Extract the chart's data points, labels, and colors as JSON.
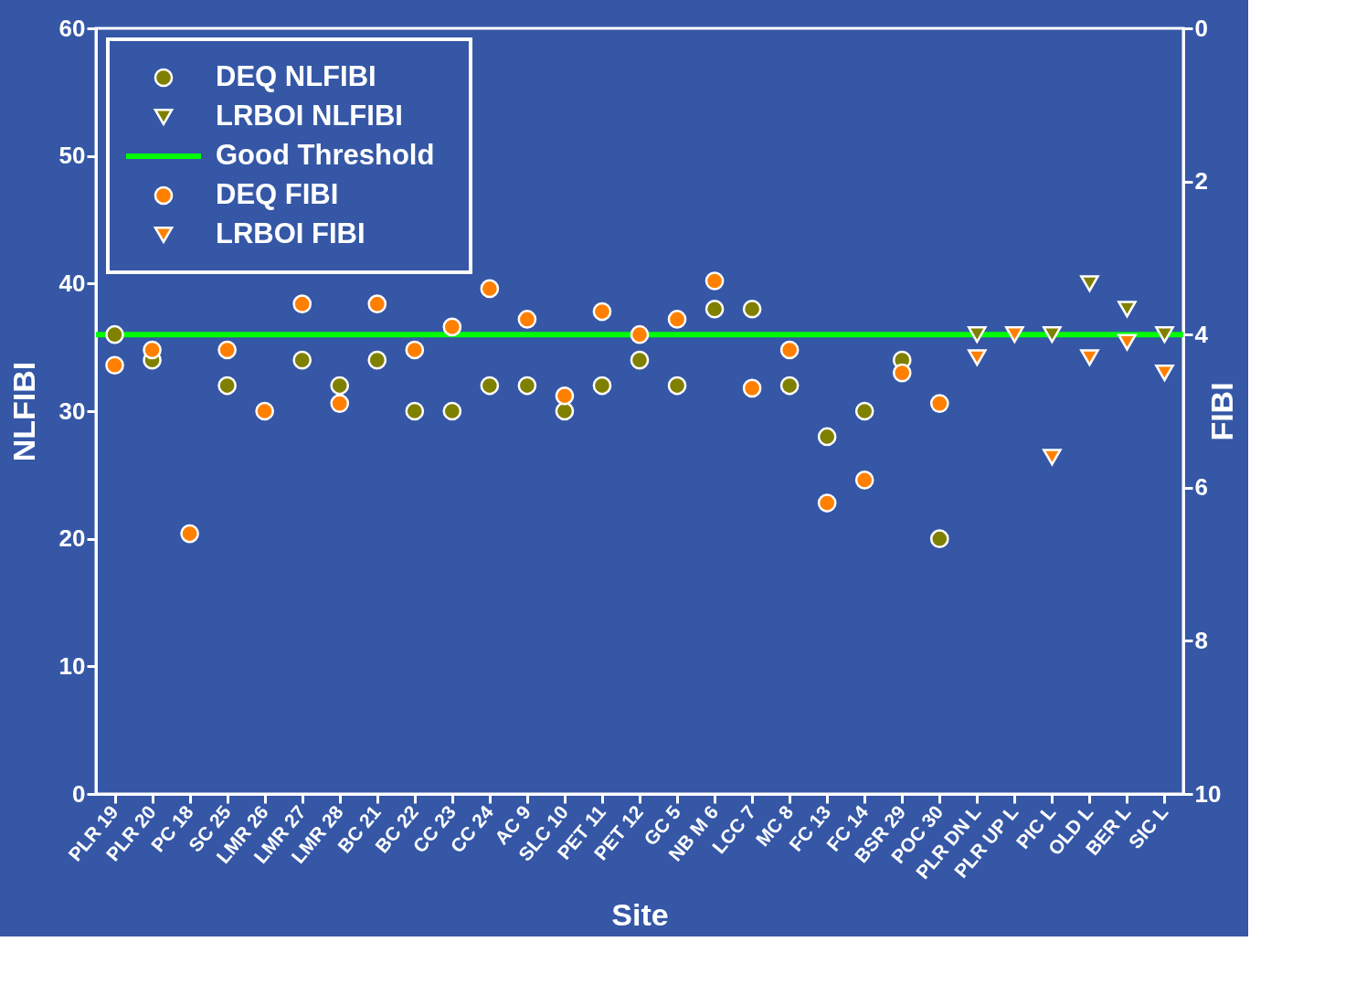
{
  "chart_data": {
    "type": "scatter",
    "xlabel": "Site",
    "ylabel": "NLFIBI",
    "y2label": "FIBI",
    "categories": [
      "PLR 19",
      "PLR 20",
      "PC 18",
      "SC 25",
      "LMR 26",
      "LMR 27",
      "LMR 28",
      "BC 21",
      "BC 22",
      "CC 23",
      "CC 24",
      "AC 9",
      "SLC 10",
      "PET 11",
      "PET 12",
      "GC 5",
      "NB M 6",
      "LCC 7",
      "MC 8",
      "FC 13",
      "FC 14",
      "BSR 29",
      "POC 30",
      "PLR DN L",
      "PLR UP L",
      "PIC L",
      "OLD L",
      "BER L",
      "SIC L"
    ],
    "ylim": [
      0,
      60
    ],
    "yticks": [
      0,
      10,
      20,
      30,
      40,
      50,
      60
    ],
    "y2lim": [
      10,
      0
    ],
    "y2ticks": [
      0,
      2,
      4,
      6,
      8,
      10
    ],
    "series": [
      {
        "name": "DEQ NLFIBI",
        "color": "#808000",
        "marker": "circle",
        "values": [
          36,
          34,
          null,
          32,
          null,
          34,
          32,
          34,
          30,
          30,
          32,
          32,
          30,
          32,
          34,
          32,
          38,
          38,
          32,
          28,
          30,
          34,
          20,
          null,
          null,
          null,
          null,
          null,
          null
        ]
      },
      {
        "name": "LRBOI NLFIBI",
        "color": "#808000",
        "marker": "triangle",
        "values": [
          null,
          null,
          null,
          null,
          null,
          null,
          null,
          null,
          null,
          null,
          null,
          null,
          null,
          null,
          null,
          null,
          null,
          null,
          null,
          null,
          null,
          null,
          null,
          36,
          null,
          36,
          40,
          38,
          36
        ]
      },
      {
        "name": "DEQ FIBI",
        "color": "#ff8000",
        "marker": "circle",
        "axis": "y2",
        "values": [
          4.4,
          4.2,
          6.6,
          4.2,
          5.0,
          3.6,
          4.9,
          3.6,
          4.2,
          3.9,
          3.4,
          3.8,
          4.8,
          3.7,
          4.0,
          3.8,
          3.3,
          4.7,
          4.2,
          6.2,
          5.9,
          4.5,
          4.9,
          null,
          null,
          null,
          null,
          null,
          null
        ]
      },
      {
        "name": "LRBOI FIBI",
        "color": "#ff8000",
        "marker": "triangle",
        "axis": "y2",
        "values": [
          null,
          null,
          null,
          null,
          null,
          null,
          null,
          null,
          null,
          null,
          null,
          null,
          null,
          null,
          null,
          null,
          null,
          null,
          null,
          null,
          null,
          null,
          null,
          4.3,
          4.0,
          5.6,
          4.3,
          4.1,
          4.5
        ]
      }
    ],
    "ref_lines": [
      {
        "axis": "y",
        "value": 36,
        "label": "Good Threshold",
        "color": "#00ff00"
      }
    ],
    "legend": "top left",
    "grid": false
  }
}
